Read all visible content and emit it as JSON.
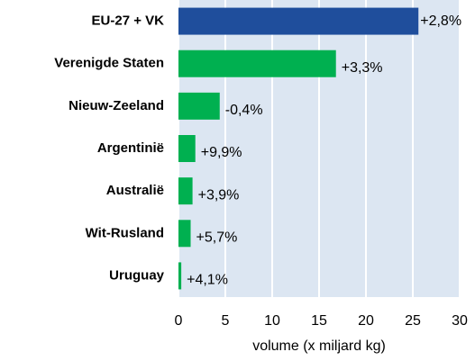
{
  "chart_data": {
    "type": "barh",
    "categories": [
      "EU-27 + VK",
      "Verenigde Staten",
      "Nieuw-Zeeland",
      "Argentinië",
      "Australië",
      "Wit-Rusland",
      "Uruguay"
    ],
    "values": [
      25.6,
      16.8,
      4.4,
      1.8,
      1.5,
      1.3,
      0.3
    ],
    "annotations": [
      "+2,8%",
      "+3,3%",
      "-0,4%",
      "+9,9%",
      "+3,9%",
      "+5,7%",
      "+4,1%"
    ],
    "colors": [
      "#1f4e9c",
      "#00b050",
      "#00b050",
      "#00b050",
      "#00b050",
      "#00b050",
      "#00b050"
    ],
    "xlabel": "volume  (x miljard kg)",
    "xlim": [
      0,
      30
    ],
    "xticks": [
      0,
      5,
      10,
      15,
      20,
      25,
      30
    ],
    "grid": true,
    "plot_background": "#dce6f2"
  }
}
